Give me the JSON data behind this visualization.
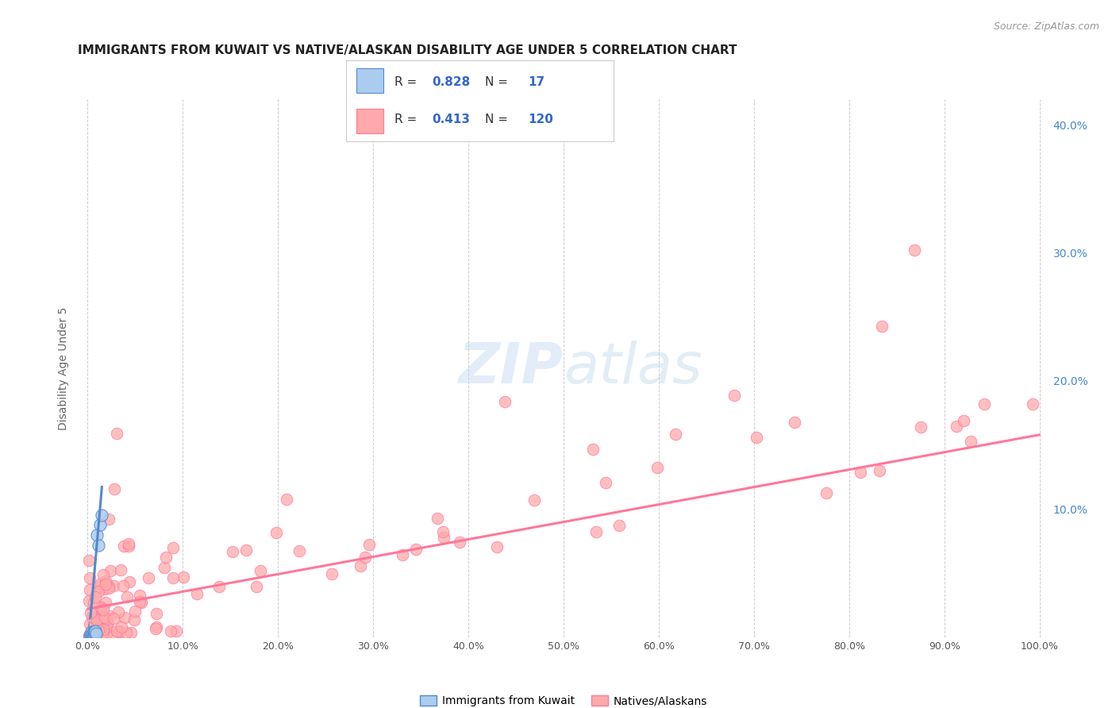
{
  "title": "IMMIGRANTS FROM KUWAIT VS NATIVE/ALASKAN DISABILITY AGE UNDER 5 CORRELATION CHART",
  "source": "Source: ZipAtlas.com",
  "ylabel": "Disability Age Under 5",
  "xlim": [
    -0.01,
    1.01
  ],
  "ylim": [
    0.0,
    0.42
  ],
  "xtick_vals": [
    0.0,
    0.1,
    0.2,
    0.3,
    0.4,
    0.5,
    0.6,
    0.7,
    0.8,
    0.9,
    1.0
  ],
  "xtick_labels": [
    "0.0%",
    "10.0%",
    "20.0%",
    "30.0%",
    "40.0%",
    "50.0%",
    "60.0%",
    "70.0%",
    "80.0%",
    "90.0%",
    "100.0%"
  ],
  "ytick_vals": [
    0.1,
    0.2,
    0.3,
    0.4
  ],
  "ytick_labels": [
    "10.0%",
    "20.0%",
    "30.0%",
    "40.0%"
  ],
  "blue_R": "0.828",
  "blue_N": "17",
  "pink_R": "0.413",
  "pink_N": "120",
  "blue_fill": "#AACCEE",
  "blue_edge": "#5588CC",
  "pink_fill": "#FFAAAA",
  "pink_edge": "#FF7799",
  "blue_line": "#5588CC",
  "pink_line": "#FF7799",
  "legend_label_blue": "Immigrants from Kuwait",
  "legend_label_pink": "Natives/Alaskans",
  "bg_color": "#FFFFFF",
  "grid_color": "#CCCCCC",
  "title_color": "#222222",
  "ylabel_color": "#666666",
  "right_tick_color": "#4488CC",
  "source_color": "#999999",
  "watermark_color": "#CCDDEEFF"
}
